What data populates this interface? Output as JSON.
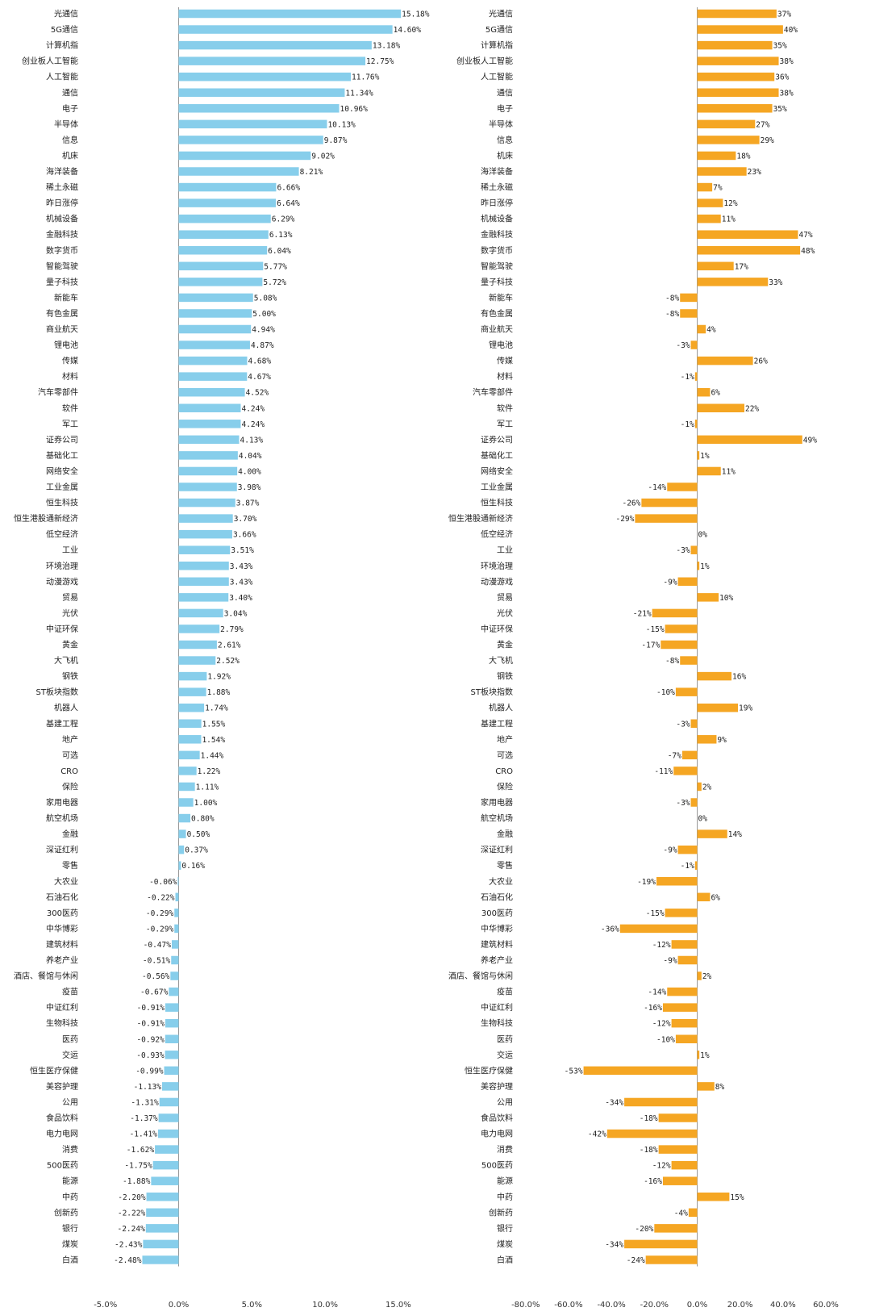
{
  "chart_data": [
    {
      "type": "bar",
      "orientation": "horizontal",
      "color": "#87CEEB",
      "xlim": [
        -5,
        15
      ],
      "xticks": [
        -5,
        0,
        5,
        10,
        15
      ],
      "xtick_labels": [
        "-5.0%",
        "0.0%",
        "5.0%",
        "10.0%",
        "15.0%"
      ],
      "categories": [
        "光通信",
        "5G通信",
        "计算机指",
        "创业板人工智能",
        "人工智能",
        "通信",
        "电子",
        "半导体",
        "信息",
        "机床",
        "海洋装备",
        "稀土永磁",
        "昨日涨停",
        "机械设备",
        "金融科技",
        "数字货币",
        "智能驾驶",
        "量子科技",
        "新能车",
        "有色金属",
        "商业航天",
        "锂电池",
        "传媒",
        "材料",
        "汽车零部件",
        "软件",
        "军工",
        "证券公司",
        "基础化工",
        "网络安全",
        "工业金属",
        "恒生科技",
        "恒生港股通新经济",
        "低空经济",
        "工业",
        "环境治理",
        "动漫游戏",
        "贸易",
        "光伏",
        "中证环保",
        "黄金",
        "大飞机",
        "钢铁",
        "ST板块指数",
        "机器人",
        "基建工程",
        "地产",
        "可选",
        "CRO",
        "保险",
        "家用电器",
        "航空机场",
        "金融",
        "深证红利",
        "零售",
        "大农业",
        "石油石化",
        "300医药",
        "中华博彩",
        "建筑材料",
        "养老产业",
        "酒店、餐馆与休闲",
        "疫苗",
        "中证红利",
        "生物科技",
        "医药",
        "交运",
        "恒生医疗保健",
        "美容护理",
        "公用",
        "食品饮料",
        "电力电网",
        "消费",
        "500医药",
        "能源",
        "中药",
        "创新药",
        "银行",
        "煤炭",
        "白酒"
      ],
      "values": [
        15.18,
        14.6,
        13.18,
        12.75,
        11.76,
        11.34,
        10.96,
        10.13,
        9.87,
        9.02,
        8.21,
        6.66,
        6.64,
        6.29,
        6.13,
        6.04,
        5.77,
        5.72,
        5.08,
        5.0,
        4.94,
        4.87,
        4.68,
        4.67,
        4.52,
        4.24,
        4.24,
        4.13,
        4.04,
        4.0,
        3.98,
        3.87,
        3.7,
        3.66,
        3.51,
        3.43,
        3.43,
        3.4,
        3.04,
        2.79,
        2.61,
        2.52,
        1.92,
        1.88,
        1.74,
        1.55,
        1.54,
        1.44,
        1.22,
        1.11,
        1.0,
        0.8,
        0.5,
        0.37,
        0.16,
        -0.06,
        -0.22,
        -0.29,
        -0.29,
        -0.47,
        -0.51,
        -0.56,
        -0.67,
        -0.91,
        -0.91,
        -0.92,
        -0.93,
        -0.99,
        -1.13,
        -1.31,
        -1.37,
        -1.41,
        -1.62,
        -1.75,
        -1.88,
        -2.2,
        -2.22,
        -2.24,
        -2.43,
        -2.48
      ],
      "value_labels": [
        "15.18%",
        "14.60%",
        "13.18%",
        "12.75%",
        "11.76%",
        "11.34%",
        "10.96%",
        "10.13%",
        "9.87%",
        "9.02%",
        "8.21%",
        "6.66%",
        "6.64%",
        "6.29%",
        "6.13%",
        "6.04%",
        "5.77%",
        "5.72%",
        "5.08%",
        "5.00%",
        "4.94%",
        "4.87%",
        "4.68%",
        "4.67%",
        "4.52%",
        "4.24%",
        "4.24%",
        "4.13%",
        "4.04%",
        "4.00%",
        "3.98%",
        "3.87%",
        "3.70%",
        "3.66%",
        "3.51%",
        "3.43%",
        "3.43%",
        "3.40%",
        "3.04%",
        "2.79%",
        "2.61%",
        "2.52%",
        "1.92%",
        "1.88%",
        "1.74%",
        "1.55%",
        "1.54%",
        "1.44%",
        "1.22%",
        "1.11%",
        "1.00%",
        "0.80%",
        "0.50%",
        "0.37%",
        "0.16%",
        "-0.06%",
        "-0.22%",
        "-0.29%",
        "-0.29%",
        "-0.47%",
        "-0.51%",
        "-0.56%",
        "-0.67%",
        "-0.91%",
        "-0.91%",
        "-0.92%",
        "-0.93%",
        "-0.99%",
        "-1.13%",
        "-1.31%",
        "-1.37%",
        "-1.41%",
        "-1.62%",
        "-1.75%",
        "-1.88%",
        "-2.20%",
        "-2.22%",
        "-2.24%",
        "-2.43%",
        "-2.48%"
      ]
    },
    {
      "type": "bar",
      "orientation": "horizontal",
      "color": "#F5A623",
      "xlim": [
        -80,
        60
      ],
      "xticks": [
        -80,
        -60,
        -40,
        -20,
        0,
        20,
        40,
        60
      ],
      "xtick_labels": [
        "-80.0%",
        "-60.0%",
        "-40.0%",
        "-20.0%",
        "0.0%",
        "20.0%",
        "40.0%",
        "60.0%"
      ],
      "categories": [
        "光通信",
        "5G通信",
        "计算机指",
        "创业板人工智能",
        "人工智能",
        "通信",
        "电子",
        "半导体",
        "信息",
        "机床",
        "海洋装备",
        "稀土永磁",
        "昨日涨停",
        "机械设备",
        "金融科技",
        "数字货币",
        "智能驾驶",
        "量子科技",
        "新能车",
        "有色金属",
        "商业航天",
        "锂电池",
        "传媒",
        "材料",
        "汽车零部件",
        "软件",
        "军工",
        "证券公司",
        "基础化工",
        "网络安全",
        "工业金属",
        "恒生科技",
        "恒生港股通新经济",
        "低空经济",
        "工业",
        "环境治理",
        "动漫游戏",
        "贸易",
        "光伏",
        "中证环保",
        "黄金",
        "大飞机",
        "钢铁",
        "ST板块指数",
        "机器人",
        "基建工程",
        "地产",
        "可选",
        "CRO",
        "保险",
        "家用电器",
        "航空机场",
        "金融",
        "深证红利",
        "零售",
        "大农业",
        "石油石化",
        "300医药",
        "中华博彩",
        "建筑材料",
        "养老产业",
        "酒店、餐馆与休闲",
        "疫苗",
        "中证红利",
        "生物科技",
        "医药",
        "交运",
        "恒生医疗保健",
        "美容护理",
        "公用",
        "食品饮料",
        "电力电网",
        "消费",
        "500医药",
        "能源",
        "中药",
        "创新药",
        "银行",
        "煤炭",
        "白酒"
      ],
      "values": [
        37,
        40,
        35,
        38,
        36,
        38,
        35,
        27,
        29,
        18,
        23,
        7,
        12,
        11,
        47,
        48,
        17,
        33,
        -8,
        -8,
        4,
        -3,
        26,
        -1,
        6,
        22,
        -1,
        49,
        1,
        11,
        -14,
        -26,
        -29,
        0,
        -3,
        1,
        -9,
        10,
        -21,
        -15,
        -17,
        -8,
        16,
        -10,
        19,
        -3,
        9,
        -7,
        -11,
        2,
        -3,
        0,
        14,
        -9,
        -1,
        -19,
        6,
        -15,
        -36,
        -12,
        -9,
        2,
        -14,
        -16,
        -12,
        -10,
        1,
        -53,
        8,
        -34,
        -18,
        -42,
        -18,
        -12,
        -16,
        15,
        -4,
        -20,
        -34,
        -24
      ],
      "value_labels": [
        "37%",
        "40%",
        "35%",
        "38%",
        "36%",
        "38%",
        "35%",
        "27%",
        "29%",
        "18%",
        "23%",
        "7%",
        "12%",
        "11%",
        "47%",
        "48%",
        "17%",
        "33%",
        "-8%",
        "-8%",
        "4%",
        "-3%",
        "26%",
        "-1%",
        "6%",
        "22%",
        "-1%",
        "49%",
        "1%",
        "11%",
        "-14%",
        "-26%",
        "-29%",
        "0%",
        "-3%",
        "1%",
        "-9%",
        "10%",
        "-21%",
        "-15%",
        "-17%",
        "-8%",
        "16%",
        "-10%",
        "19%",
        "-3%",
        "9%",
        "-7%",
        "-11%",
        "2%",
        "-3%",
        "0%",
        "14%",
        "-9%",
        "-1%",
        "-19%",
        "6%",
        "-15%",
        "-36%",
        "-12%",
        "-9%",
        "2%",
        "-14%",
        "-16%",
        "-12%",
        "-10%",
        "1%",
        "-53%",
        "8%",
        "-34%",
        "-18%",
        "-42%",
        "-18%",
        "-12%",
        "-16%",
        "15%",
        "-4%",
        "-20%",
        "-34%",
        "-24%"
      ]
    }
  ]
}
